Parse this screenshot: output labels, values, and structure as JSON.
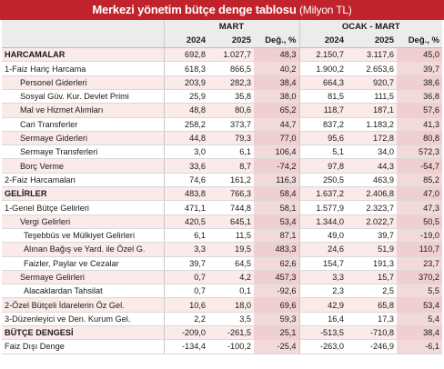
{
  "title": "Merkezi yönetim bütçe denge tablosu",
  "title_unit": "(Milyon TL)",
  "groups": [
    "MART",
    "OCAK - MART"
  ],
  "columns": [
    "2024",
    "2025",
    "Değ., %",
    "2024",
    "2025",
    "Değ., %"
  ],
  "colors": {
    "title_bg": "#c0232b",
    "alt_row": "#fbeaea",
    "pct_col": "#f3dada"
  },
  "rows": [
    {
      "label": "HARCAMALAR",
      "values": [
        "692,8",
        "1.027,7",
        "48,3",
        "2.150,7",
        "3.117,6",
        "45,0"
      ]
    },
    {
      "label": "1-Faiz Hariç Harcama",
      "values": [
        "618,3",
        "866,5",
        "40,2",
        "1.900,2",
        "2.653,6",
        "39,7"
      ]
    },
    {
      "label": "Personel Giderleri",
      "values": [
        "203,9",
        "282,3",
        "38,4",
        "664,3",
        "920,7",
        "38,6"
      ]
    },
    {
      "label": "Sosyal Güv. Kur. Devlet Primi",
      "values": [
        "25,9",
        "35,8",
        "38,0",
        "81,5",
        "111,5",
        "36,8"
      ]
    },
    {
      "label": "Mal ve Hizmet Alımları",
      "values": [
        "48,8",
        "80,6",
        "65,2",
        "118,7",
        "187,1",
        "57,6"
      ]
    },
    {
      "label": "Cari Transferler",
      "values": [
        "258,2",
        "373,7",
        "44,7",
        "837,2",
        "1.183,2",
        "41,3"
      ]
    },
    {
      "label": "Sermaye Giderleri",
      "values": [
        "44,8",
        "79,3",
        "77,0",
        "95,6",
        "172,8",
        "80,8"
      ]
    },
    {
      "label": "Sermaye Transferleri",
      "values": [
        "3,0",
        "6,1",
        "106,4",
        "5,1",
        "34,0",
        "572,3"
      ]
    },
    {
      "label": "Borç Verme",
      "values": [
        "33,6",
        "8,7",
        "-74,2",
        "97,8",
        "44,3",
        "-54,7"
      ]
    },
    {
      "label": "2-Faiz Harcamaları",
      "values": [
        "74,6",
        "161,2",
        "116,3",
        "250,5",
        "463,9",
        "85,2"
      ]
    },
    {
      "label": "GELİRLER",
      "values": [
        "483,8",
        "766,3",
        "58,4",
        "1.637,2",
        "2.406,8",
        "47,0"
      ]
    },
    {
      "label": "1-Genel Bütçe Gelirleri",
      "values": [
        "471,1",
        "744,8",
        "58,1",
        "1.577,9",
        "2.323,7",
        "47,3"
      ]
    },
    {
      "label": "Vergi Gelirleri",
      "values": [
        "420,5",
        "645,1",
        "53,4",
        "1.344,0",
        "2.022,7",
        "50,5"
      ]
    },
    {
      "label": "Teşebbüs ve Mülkiyet Gelirleri",
      "values": [
        "6,1",
        "11,5",
        "87,1",
        "49,0",
        "39,7",
        "-19,0"
      ]
    },
    {
      "label": "Alınan Bağış ve Yard. ile Özel G.",
      "values": [
        "3,3",
        "19,5",
        "483,3",
        "24,6",
        "51,9",
        "110,7"
      ]
    },
    {
      "label": "Faizler, Paylar ve Cezalar",
      "values": [
        "39,7",
        "64,5",
        "62,6",
        "154,7",
        "191,3",
        "23,7"
      ]
    },
    {
      "label": "Sermaye Gelirleri",
      "values": [
        "0,7",
        "4,2",
        "457,3",
        "3,3",
        "15,7",
        "370,2"
      ]
    },
    {
      "label": "Alacaklardan Tahsilat",
      "values": [
        "0,7",
        "0,1",
        "-92,6",
        "2,3",
        "2,5",
        "5,5"
      ]
    },
    {
      "label": "2-Özel Bütçeli İdarelerin Öz Gel.",
      "values": [
        "10,6",
        "18,0",
        "69,6",
        "42,9",
        "65,8",
        "53,4"
      ]
    },
    {
      "label": "3-Düzenleyici ve Den. Kurum Gel.",
      "values": [
        "2,2",
        "3,5",
        "59,3",
        "16,4",
        "17,3",
        "5,4"
      ]
    },
    {
      "label": "BÜTÇE DENGESİ",
      "values": [
        "-209,0",
        "-261,5",
        "25,1",
        "-513,5",
        "-710,8",
        "38,4"
      ]
    },
    {
      "label": "Faiz Dışı Denge",
      "values": [
        "-134,4",
        "-100,2",
        "-25,4",
        "-263,0",
        "-246,9",
        "-6,1"
      ]
    }
  ]
}
